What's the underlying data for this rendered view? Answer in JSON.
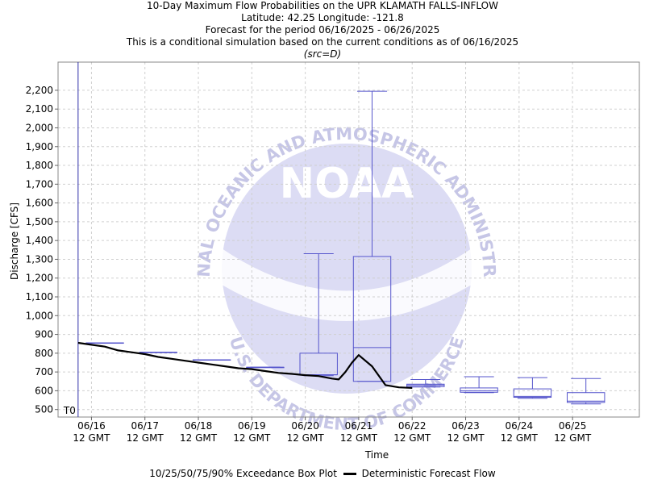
{
  "header": {
    "title": "10-Day Maximum Flow Probabilities on the UPR KLAMATH FALLS-INFLOW",
    "location": "Latitude: 42.25 Longitude: -121.8",
    "period": "Forecast for the period 06/16/2025 - 06/26/2025",
    "note": "This is a conditional simulation based on the current conditions as of 06/16/2025",
    "source": "(src=D)"
  },
  "legend": {
    "box_label": "10/25/50/75/90% Exceedance Box Plot",
    "line_label": "Deterministic Forecast Flow"
  },
  "watermark": {
    "logo_text": "NOAA",
    "ring_top": "NATIONAL OCEANIC AND ATMOSPHERIC ADMINISTRATION",
    "ring_bottom": "U.S. DEPARTMENT OF COMMERCE"
  },
  "colors": {
    "box": "#5555cc",
    "line": "#000000",
    "grid": "#d0d0d0",
    "t0": "#3333aa",
    "watermark_fill": "#dcdcf4",
    "watermark_text": "#c6c6e6"
  },
  "chart_data": {
    "type": "box",
    "xlabel": "Time",
    "ylabel": "Discharge [CFS]",
    "ylim": [
      460,
      2350
    ],
    "xlim": [
      "06/15 21 GMT",
      "06/26 18 GMT"
    ],
    "y_ticks": [
      500,
      600,
      700,
      800,
      900,
      1000,
      1100,
      1200,
      1300,
      1400,
      1500,
      1600,
      1700,
      1800,
      1900,
      2000,
      2100,
      2200
    ],
    "y_tick_labels": [
      "500",
      "600",
      "700",
      "800",
      "900",
      "1,000",
      "1,100",
      "1,200",
      "1,300",
      "1,400",
      "1,500",
      "1,600",
      "1,700",
      "1,800",
      "1,900",
      "2,000",
      "2,100",
      "2,200"
    ],
    "x_ticks": [
      "06/16 12 GMT",
      "06/17 12 GMT",
      "06/18 12 GMT",
      "06/19 12 GMT",
      "06/20 12 GMT",
      "06/21 12 GMT",
      "06/22 12 GMT",
      "06/23 12 GMT",
      "06/24 12 GMT",
      "06/25 12 GMT"
    ],
    "x_tick_labels": [
      [
        "06/16",
        "12 GMT"
      ],
      [
        "06/17",
        "12 GMT"
      ],
      [
        "06/18",
        "12 GMT"
      ],
      [
        "06/19",
        "12 GMT"
      ],
      [
        "06/20",
        "12 GMT"
      ],
      [
        "06/21",
        "12 GMT"
      ],
      [
        "06/22",
        "12 GMT"
      ],
      [
        "06/23",
        "12 GMT"
      ],
      [
        "06/24",
        "12 GMT"
      ],
      [
        "06/25",
        "12 GMT"
      ]
    ],
    "t0": {
      "label": "T0",
      "time": "06/16 06 GMT"
    },
    "boxes": [
      {
        "start": "06/16 06 GMT",
        "end": "06/17 06 GMT",
        "p10": 855,
        "p25": 855,
        "p50": 855,
        "p75": 855,
        "p90": 855
      },
      {
        "start": "06/17 06 GMT",
        "end": "06/18 06 GMT",
        "p10": 805,
        "p25": 805,
        "p50": 805,
        "p75": 805,
        "p90": 805
      },
      {
        "start": "06/18 06 GMT",
        "end": "06/19 06 GMT",
        "p10": 765,
        "p25": 765,
        "p50": 765,
        "p75": 765,
        "p90": 765
      },
      {
        "start": "06/19 06 GMT",
        "end": "06/20 06 GMT",
        "p10": 725,
        "p25": 725,
        "p50": 725,
        "p75": 725,
        "p90": 725
      },
      {
        "start": "06/20 06 GMT",
        "end": "06/21 06 GMT",
        "p10": 680,
        "p25": 685,
        "p50": 685,
        "p75": 800,
        "p90": 1330
      },
      {
        "start": "06/21 06 GMT",
        "end": "06/22 06 GMT",
        "p10": 650,
        "p25": 650,
        "p50": 830,
        "p75": 1315,
        "p90": 2195
      },
      {
        "start": "06/22 06 GMT",
        "end": "06/23 06 GMT",
        "p10": 620,
        "p25": 622,
        "p50": 630,
        "p75": 635,
        "p90": 660
      },
      {
        "start": "06/23 06 GMT",
        "end": "06/24 06 GMT",
        "p10": 590,
        "p25": 592,
        "p50": 600,
        "p75": 615,
        "p90": 675
      },
      {
        "start": "06/24 06 GMT",
        "end": "06/25 06 GMT",
        "p10": 560,
        "p25": 565,
        "p50": 570,
        "p75": 610,
        "p90": 670
      },
      {
        "start": "06/25 06 GMT",
        "end": "06/26 06 GMT",
        "p10": 530,
        "p25": 538,
        "p50": 545,
        "p75": 590,
        "p90": 665
      }
    ],
    "series": [
      {
        "name": "Deterministic Forecast Flow",
        "x": [
          "06/16 06 GMT",
          "06/16 12 GMT",
          "06/16 18 GMT",
          "06/17 00 GMT",
          "06/17 06 GMT",
          "06/17 12 GMT",
          "06/17 18 GMT",
          "06/18 00 GMT",
          "06/18 06 GMT",
          "06/18 12 GMT",
          "06/18 18 GMT",
          "06/19 00 GMT",
          "06/19 06 GMT",
          "06/19 12 GMT",
          "06/19 18 GMT",
          "06/20 00 GMT",
          "06/20 06 GMT",
          "06/20 12 GMT",
          "06/20 18 GMT",
          "06/21 00 GMT",
          "06/21 03 GMT",
          "06/21 06 GMT",
          "06/21 09 GMT",
          "06/21 12 GMT",
          "06/21 18 GMT",
          "06/22 00 GMT",
          "06/22 06 GMT",
          "06/22 12 GMT"
        ],
        "y": [
          855,
          845,
          835,
          815,
          805,
          795,
          780,
          770,
          760,
          750,
          740,
          730,
          720,
          715,
          705,
          695,
          690,
          683,
          678,
          665,
          660,
          700,
          750,
          790,
          730,
          630,
          618,
          615
        ]
      }
    ]
  }
}
